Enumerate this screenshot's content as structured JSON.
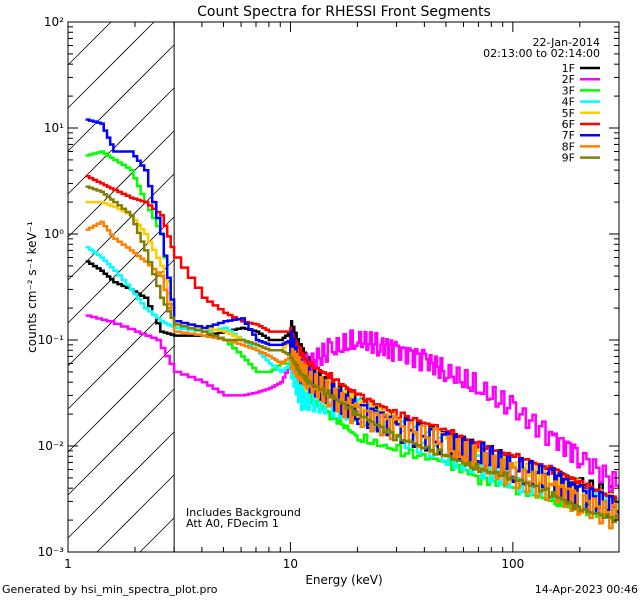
{
  "chart_data": {
    "type": "line",
    "title": "Count Spectra for RHESSI Front Segments",
    "xlabel": "Energy (keV)",
    "ylabel": "counts cm⁻² s⁻¹ keV⁻¹",
    "xscale": "log",
    "yscale": "log",
    "xlim": [
      1,
      300
    ],
    "ylim": [
      0.001,
      100
    ],
    "x_tick_labels": [
      {
        "value": 1,
        "label": "1"
      },
      {
        "value": 10,
        "label": "10"
      },
      {
        "value": 100,
        "label": "100"
      }
    ],
    "y_tick_labels": [
      {
        "value": 0.001,
        "label": "10⁻³"
      },
      {
        "value": 0.01,
        "label": "10⁻²"
      },
      {
        "value": 0.1,
        "label": "10⁻¹"
      },
      {
        "value": 1,
        "label": "10⁰"
      },
      {
        "value": 10,
        "label": "10¹"
      },
      {
        "value": 100,
        "label": "10²"
      }
    ],
    "hatched_region": [
      1,
      3
    ],
    "legend_position": "top-right",
    "date": "22-Jan-2014",
    "time_range": "02:13:00 to 02:14:00",
    "annotations": [
      "Includes Background",
      "Att A0, FDecim 1"
    ],
    "series": [
      {
        "name": "1F",
        "color": "#000000",
        "x": [
          1.2,
          1.4,
          1.6,
          1.9,
          2.2,
          2.6,
          3.0,
          4,
          5,
          6,
          7,
          8,
          9,
          10,
          11,
          12,
          15,
          20,
          30,
          50,
          70,
          100,
          150,
          200,
          300
        ],
        "y": [
          0.55,
          0.45,
          0.35,
          0.3,
          0.25,
          0.12,
          0.11,
          0.11,
          0.12,
          0.13,
          0.12,
          0.1,
          0.1,
          0.12,
          0.07,
          0.05,
          0.03,
          0.025,
          0.015,
          0.01,
          0.008,
          0.006,
          0.005,
          0.004,
          0.003
        ]
      },
      {
        "name": "2F",
        "color": "#ff00ff",
        "x": [
          1.2,
          1.5,
          2,
          2.5,
          3,
          4,
          5,
          6,
          7,
          8,
          9,
          10,
          11,
          12,
          15,
          20,
          25,
          30,
          40,
          50,
          70,
          100,
          150,
          200,
          300
        ],
        "y": [
          0.17,
          0.15,
          0.12,
          0.1,
          0.05,
          0.04,
          0.03,
          0.03,
          0.032,
          0.035,
          0.04,
          0.06,
          0.06,
          0.06,
          0.08,
          0.1,
          0.09,
          0.08,
          0.065,
          0.05,
          0.035,
          0.022,
          0.012,
          0.008,
          0.004
        ]
      },
      {
        "name": "3F",
        "color": "#00ff00",
        "x": [
          1.2,
          1.4,
          1.6,
          1.9,
          2.2,
          2.6,
          3.0,
          4,
          5,
          6,
          7,
          8,
          9,
          10,
          11,
          12,
          15,
          20,
          30,
          50,
          70,
          100,
          150,
          200,
          300
        ],
        "y": [
          5.5,
          6,
          5,
          4,
          2,
          1,
          0.13,
          0.12,
          0.1,
          0.07,
          0.05,
          0.05,
          0.06,
          0.06,
          0.04,
          0.03,
          0.02,
          0.012,
          0.009,
          0.007,
          0.005,
          0.004,
          0.003,
          0.0025,
          0.002
        ]
      },
      {
        "name": "4F",
        "color": "#00ffff",
        "x": [
          1.2,
          1.4,
          1.6,
          1.9,
          2.2,
          2.6,
          3.0,
          4,
          5,
          6,
          7,
          8,
          9,
          10,
          11,
          12,
          15,
          20,
          30,
          50,
          70,
          100,
          150,
          200,
          300
        ],
        "y": [
          0.75,
          0.6,
          0.45,
          0.3,
          0.2,
          0.15,
          0.13,
          0.12,
          0.13,
          0.1,
          0.08,
          0.06,
          0.05,
          0.06,
          0.03,
          0.03,
          0.025,
          0.02,
          0.013,
          0.009,
          0.007,
          0.005,
          0.004,
          0.003,
          0.0025
        ]
      },
      {
        "name": "5F",
        "color": "#ffcc00",
        "x": [
          1.2,
          1.4,
          1.6,
          1.9,
          2.2,
          2.6,
          3.0,
          4,
          5,
          6,
          7,
          8,
          9,
          10,
          11,
          12,
          15,
          20,
          30,
          50,
          70,
          100,
          150,
          200,
          300
        ],
        "y": [
          2.0,
          2.0,
          1.8,
          1.5,
          1.0,
          0.5,
          0.15,
          0.13,
          0.12,
          0.1,
          0.09,
          0.08,
          0.08,
          0.1,
          0.06,
          0.04,
          0.03,
          0.022,
          0.015,
          0.01,
          0.008,
          0.006,
          0.0045,
          0.0035,
          0.0025
        ]
      },
      {
        "name": "6F",
        "color": "#ff0000",
        "x": [
          1.2,
          1.4,
          1.6,
          1.9,
          2.2,
          2.6,
          3.0,
          4,
          5,
          6,
          7,
          8,
          9,
          10,
          11,
          12,
          15,
          20,
          30,
          50,
          70,
          100,
          150,
          200,
          300
        ],
        "y": [
          3.5,
          3,
          2.6,
          2.2,
          2.0,
          1.5,
          0.6,
          0.25,
          0.18,
          0.15,
          0.14,
          0.12,
          0.12,
          0.12,
          0.08,
          0.06,
          0.045,
          0.03,
          0.02,
          0.014,
          0.01,
          0.008,
          0.006,
          0.0045,
          0.003
        ]
      },
      {
        "name": "7F",
        "color": "#0000ff",
        "x": [
          1.2,
          1.4,
          1.6,
          1.9,
          2.2,
          2.6,
          3.0,
          4,
          5,
          6,
          7,
          8,
          9,
          10,
          11,
          12,
          15,
          20,
          30,
          50,
          70,
          100,
          150,
          200,
          300
        ],
        "y": [
          12,
          11,
          6,
          6,
          4,
          1.0,
          0.15,
          0.13,
          0.15,
          0.16,
          0.1,
          0.09,
          0.09,
          0.1,
          0.05,
          0.04,
          0.03,
          0.022,
          0.015,
          0.01,
          0.008,
          0.006,
          0.005,
          0.0035,
          0.0025
        ]
      },
      {
        "name": "8F",
        "color": "#ff8000",
        "x": [
          1.2,
          1.4,
          1.6,
          1.9,
          2.2,
          2.6,
          3.0,
          4,
          5,
          6,
          7,
          8,
          9,
          10,
          11,
          12,
          15,
          20,
          30,
          50,
          70,
          100,
          150,
          200,
          300
        ],
        "y": [
          1.1,
          1.3,
          0.9,
          0.7,
          0.55,
          0.4,
          0.12,
          0.11,
          0.1,
          0.09,
          0.08,
          0.07,
          0.06,
          0.07,
          0.05,
          0.04,
          0.03,
          0.02,
          0.015,
          0.01,
          0.007,
          0.005,
          0.004,
          0.003,
          0.002
        ]
      },
      {
        "name": "9F",
        "color": "#808000",
        "x": [
          1.2,
          1.4,
          1.6,
          1.9,
          2.2,
          2.6,
          3.0,
          4,
          5,
          6,
          7,
          8,
          9,
          10,
          11,
          12,
          15,
          20,
          30,
          50,
          70,
          100,
          150,
          200,
          300
        ],
        "y": [
          2.8,
          2.5,
          2.0,
          1.5,
          0.7,
          0.25,
          0.14,
          0.12,
          0.1,
          0.1,
          0.09,
          0.08,
          0.08,
          0.07,
          0.05,
          0.04,
          0.03,
          0.02,
          0.012,
          0.008,
          0.006,
          0.005,
          0.0035,
          0.0025,
          0.002
        ]
      }
    ]
  },
  "footer": {
    "generator": "Generated by hsi_min_spectra_plot.pro",
    "timestamp": "14-Apr-2023 00:46"
  }
}
